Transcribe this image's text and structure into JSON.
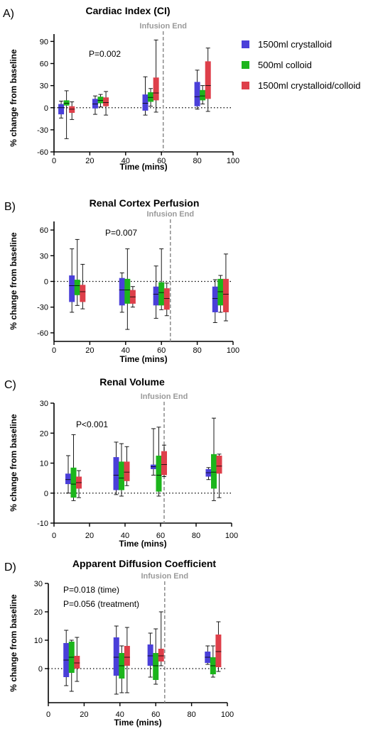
{
  "series_colors": [
    "#4a3fd9",
    "#1cb51c",
    "#de3f4a"
  ],
  "legend": {
    "items": [
      {
        "label": "1500ml crystalloid",
        "color": "#4a3fd9"
      },
      {
        "label": "500ml colloid",
        "color": "#1cb51c"
      },
      {
        "label": "1500ml crystalloid/colloid",
        "color": "#de3f4a"
      }
    ]
  },
  "chart_data": [
    {
      "type": "bar",
      "panel_label": "A)",
      "title": "Cardiac Index (CI)",
      "xlabel": "Time (mins)",
      "ylabel": "% change from baseline",
      "xlim": [
        0,
        100
      ],
      "ylim": [
        -60,
        100
      ],
      "xticks": [
        0,
        20,
        40,
        60,
        80,
        100
      ],
      "yticks": [
        -60,
        -30,
        0,
        30,
        60,
        90
      ],
      "infusion_end_label": "Infusion End",
      "infusion_end_x": 61,
      "pvalue_text": [
        "P=0.002"
      ],
      "series": [
        {
          "name": "1500ml crystalloid",
          "points": [
            {
              "x": 4,
              "low": -9,
              "high": 5,
              "mid": 0,
              "err_low": -14,
              "err_high": 9
            },
            {
              "x": 23,
              "low": -1,
              "high": 12,
              "mid": 5,
              "err_low": -9,
              "err_high": 16
            },
            {
              "x": 51,
              "low": -4,
              "high": 18,
              "mid": 6,
              "err_low": -10,
              "err_high": 42
            },
            {
              "x": 80,
              "low": 2,
              "high": 35,
              "mid": 15,
              "err_low": -2,
              "err_high": 51
            }
          ]
        },
        {
          "name": "500ml colloid",
          "points": [
            {
              "x": 7,
              "low": 3,
              "high": 10,
              "mid": 6,
              "err_low": -42,
              "err_high": 23
            },
            {
              "x": 26,
              "low": 6,
              "high": 15,
              "mid": 10,
              "err_low": 1,
              "err_high": 18
            },
            {
              "x": 54,
              "low": 8,
              "high": 21,
              "mid": 14,
              "err_low": 2,
              "err_high": 26
            },
            {
              "x": 83,
              "low": 10,
              "high": 24,
              "mid": 16,
              "err_low": 5,
              "err_high": 30
            }
          ]
        },
        {
          "name": "1500ml crystalloid/colloid",
          "points": [
            {
              "x": 10,
              "low": -7,
              "high": 2,
              "mid": -2,
              "err_low": -16,
              "err_high": 8
            },
            {
              "x": 29,
              "low": 2,
              "high": 14,
              "mid": 7,
              "err_low": -10,
              "err_high": 22
            },
            {
              "x": 57,
              "low": 10,
              "high": 41,
              "mid": 20,
              "err_low": -6,
              "err_high": 92
            },
            {
              "x": 86,
              "low": 12,
              "high": 63,
              "mid": 30,
              "err_low": -5,
              "err_high": 81
            }
          ]
        }
      ]
    },
    {
      "type": "bar",
      "panel_label": "B)",
      "title": "Renal Cortex Perfusion",
      "xlabel": "Time (mins)",
      "ylabel": "% change from baseline",
      "xlim": [
        0,
        100
      ],
      "ylim": [
        -70,
        70
      ],
      "xticks": [
        0,
        20,
        40,
        60,
        80,
        100
      ],
      "yticks": [
        -60,
        -30,
        0,
        30,
        60
      ],
      "infusion_end_label": "Infusion End",
      "infusion_end_x": 65,
      "pvalue_text": [
        "P=0.007"
      ],
      "series": [
        {
          "name": "1500ml crystalloid",
          "points": [
            {
              "x": 10,
              "low": -24,
              "high": 7,
              "mid": -5,
              "err_low": -36,
              "err_high": 38
            },
            {
              "x": 38,
              "low": -28,
              "high": 4,
              "mid": -10,
              "err_low": -36,
              "err_high": 10
            },
            {
              "x": 57,
              "low": -28,
              "high": -6,
              "mid": -15,
              "err_low": -43,
              "err_high": 18
            },
            {
              "x": 90,
              "low": -36,
              "high": -6,
              "mid": -20,
              "err_low": -48,
              "err_high": 2
            }
          ]
        },
        {
          "name": "500ml colloid",
          "points": [
            {
              "x": 13,
              "low": -16,
              "high": 2,
              "mid": -5,
              "err_low": -28,
              "err_high": 49
            },
            {
              "x": 41,
              "low": -26,
              "high": 3,
              "mid": -10,
              "err_low": -56,
              "err_high": 38
            },
            {
              "x": 60,
              "low": -28,
              "high": -1,
              "mid": -13,
              "err_low": -33,
              "err_high": 38
            },
            {
              "x": 93,
              "low": -28,
              "high": 3,
              "mid": -12,
              "err_low": -36,
              "err_high": 7
            }
          ]
        },
        {
          "name": "1500ml crystalloid/colloid",
          "points": [
            {
              "x": 16,
              "low": -24,
              "high": -4,
              "mid": -12,
              "err_low": -32,
              "err_high": 20
            },
            {
              "x": 44,
              "low": -26,
              "high": -10,
              "mid": -18,
              "err_low": -30,
              "err_high": -6
            },
            {
              "x": 63,
              "low": -33,
              "high": -8,
              "mid": -20,
              "err_low": -40,
              "err_high": -2
            },
            {
              "x": 96,
              "low": -36,
              "high": 3,
              "mid": -15,
              "err_low": -46,
              "err_high": 32
            }
          ]
        }
      ]
    },
    {
      "type": "bar",
      "panel_label": "C)",
      "title": "Renal Volume",
      "xlabel": "Time (mins)",
      "ylabel": "% change from baseline",
      "xlim": [
        0,
        100
      ],
      "ylim": [
        -10,
        30
      ],
      "xticks": [
        0,
        20,
        40,
        60,
        80,
        100
      ],
      "yticks": [
        -10,
        0,
        10,
        20,
        30
      ],
      "infusion_end_label": "Infusion End",
      "infusion_end_x": 62,
      "pvalue_text": [
        "P<0.001"
      ],
      "series": [
        {
          "name": "1500ml crystalloid",
          "points": [
            {
              "x": 8,
              "low": 3,
              "high": 6.5,
              "mid": 4.5,
              "err_low": 0,
              "err_high": 12.5
            },
            {
              "x": 35,
              "low": 1,
              "high": 12,
              "mid": 6,
              "err_low": -0.5,
              "err_high": 17
            },
            {
              "x": 56,
              "low": 8,
              "high": 9.5,
              "mid": 8.8,
              "err_low": 6,
              "err_high": 21.5
            },
            {
              "x": 87,
              "low": 5.5,
              "high": 8,
              "mid": 6.8,
              "err_low": 4.5,
              "err_high": 8.5
            }
          ]
        },
        {
          "name": "500ml colloid",
          "points": [
            {
              "x": 11,
              "low": -1.5,
              "high": 8.5,
              "mid": 3,
              "err_low": -2.5,
              "err_high": 19.5
            },
            {
              "x": 38,
              "low": 1,
              "high": 10.5,
              "mid": 5,
              "err_low": -1,
              "err_high": 16.5
            },
            {
              "x": 59,
              "low": 0.5,
              "high": 12.5,
              "mid": 6,
              "err_low": -1,
              "err_high": 22
            },
            {
              "x": 90,
              "low": 1.5,
              "high": 13,
              "mid": 7,
              "err_low": -2.5,
              "err_high": 25
            }
          ]
        },
        {
          "name": "1500ml crystalloid/colloid",
          "points": [
            {
              "x": 14,
              "low": 1.5,
              "high": 5.5,
              "mid": 3.5,
              "err_low": -1.5,
              "err_high": 7.5
            },
            {
              "x": 41,
              "low": 4,
              "high": 10.5,
              "mid": 7,
              "err_low": 2.5,
              "err_high": 15.5
            },
            {
              "x": 62,
              "low": 6,
              "high": 14,
              "mid": 9.5,
              "err_low": 5.5,
              "err_high": 16
            },
            {
              "x": 93,
              "low": 6.5,
              "high": 12.5,
              "mid": 9,
              "err_low": -1.5,
              "err_high": 13
            }
          ]
        }
      ]
    },
    {
      "type": "bar",
      "panel_label": "D)",
      "title": "Apparent Diffusion Coefficient",
      "xlabel": "Time (mins)",
      "ylabel": "% change from baseline",
      "xlim": [
        0,
        100
      ],
      "ylim": [
        -12,
        30
      ],
      "xticks": [
        0,
        20,
        40,
        60,
        80,
        100
      ],
      "yticks": [
        0,
        10,
        20,
        30
      ],
      "infusion_end_label": "Infusion End",
      "infusion_end_x": 65,
      "pvalue_text": [
        "P=0.018 (time)",
        "P=0.056 (treatment)"
      ],
      "series": [
        {
          "name": "1500ml crystalloid",
          "points": [
            {
              "x": 10,
              "low": -3,
              "high": 9,
              "mid": 3,
              "err_low": -6,
              "err_high": 13.5
            },
            {
              "x": 38,
              "low": -2.5,
              "high": 11,
              "mid": 4,
              "err_low": -9,
              "err_high": 15
            },
            {
              "x": 57,
              "low": 1,
              "high": 8.5,
              "mid": 4.5,
              "err_low": -3,
              "err_high": 12.5
            },
            {
              "x": 89,
              "low": 2,
              "high": 6,
              "mid": 4,
              "err_low": 1.5,
              "err_high": 8
            }
          ]
        },
        {
          "name": "500ml colloid",
          "points": [
            {
              "x": 13,
              "low": -1.5,
              "high": 9.5,
              "mid": 4,
              "err_low": -8,
              "err_high": 10
            },
            {
              "x": 41,
              "low": -3.5,
              "high": 5.5,
              "mid": 1,
              "err_low": -8.5,
              "err_high": 8
            },
            {
              "x": 60,
              "low": -4,
              "high": 5.5,
              "mid": 1,
              "err_low": -5.5,
              "err_high": 14
            },
            {
              "x": 92,
              "low": -2,
              "high": 4,
              "mid": 1,
              "err_low": -3,
              "err_high": 8
            }
          ]
        },
        {
          "name": "1500ml crystalloid/colloid",
          "points": [
            {
              "x": 16,
              "low": 0,
              "high": 4.5,
              "mid": 2,
              "err_low": -4.5,
              "err_high": 11
            },
            {
              "x": 44,
              "low": 1,
              "high": 8,
              "mid": 4,
              "err_low": -8.5,
              "err_high": 14.5
            },
            {
              "x": 63,
              "low": 2.5,
              "high": 7,
              "mid": 4.5,
              "err_low": 1,
              "err_high": 20
            },
            {
              "x": 95,
              "low": 0.5,
              "high": 12,
              "mid": 6,
              "err_low": -1,
              "err_high": 16.5
            }
          ]
        }
      ]
    }
  ]
}
